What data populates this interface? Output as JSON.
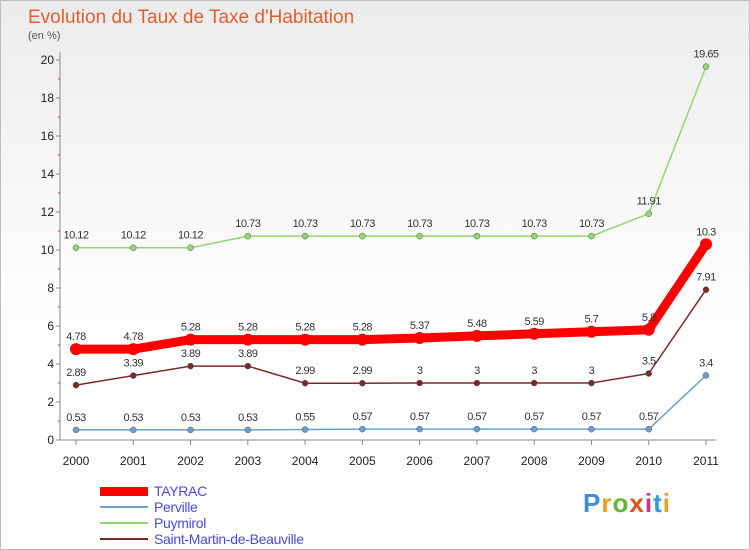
{
  "title": "Evolution du Taux de Taxe d'Habitation",
  "subtitle": "(en %)",
  "logo": {
    "text": "Proxiti",
    "colors": [
      "#3b8fd8",
      "#e8a020",
      "#5fb830",
      "#e05020",
      "#d03090",
      "#2a9fd8",
      "#e8a020"
    ]
  },
  "chart_data": {
    "type": "line",
    "x": [
      "2000",
      "2001",
      "2002",
      "2003",
      "2004",
      "2005",
      "2006",
      "2007",
      "2008",
      "2009",
      "2010",
      "2011"
    ],
    "ylim": [
      0,
      20
    ],
    "yticks": [
      0,
      2,
      4,
      6,
      8,
      10,
      12,
      14,
      16,
      18,
      20
    ],
    "grid": false,
    "legend_position": "bottom-left",
    "series": [
      {
        "name": "TAYRAC",
        "color": "#ff0000",
        "values": [
          4.78,
          4.78,
          5.28,
          5.28,
          5.28,
          5.28,
          5.37,
          5.48,
          5.59,
          5.7,
          5.8,
          10.3
        ],
        "labels": [
          "4.78",
          "4.78",
          "5.28",
          "5.28",
          "5.28",
          "5.28",
          "5.37",
          "5.48",
          "5.59",
          "5.7",
          "5.8",
          "10.3"
        ]
      },
      {
        "name": "Perville",
        "color": "#6a9fd0",
        "values": [
          0.53,
          0.53,
          0.53,
          0.53,
          0.55,
          0.57,
          0.57,
          0.57,
          0.57,
          0.57,
          0.57,
          3.4
        ],
        "labels": [
          "0.53",
          "0.53",
          "0.53",
          "0.53",
          "0.55",
          "0.57",
          "0.57",
          "0.57",
          "0.57",
          "0.57",
          "0.57",
          "3.4"
        ]
      },
      {
        "name": "Puymirol",
        "color": "#90d870",
        "values": [
          10.12,
          10.12,
          10.12,
          10.73,
          10.73,
          10.73,
          10.73,
          10.73,
          10.73,
          10.73,
          11.91,
          19.65
        ],
        "labels": [
          "10.12",
          "10.12",
          "10.12",
          "10.73",
          "10.73",
          "10.73",
          "10.73",
          "10.73",
          "10.73",
          "10.73",
          "11.91",
          "19.65"
        ]
      },
      {
        "name": "Saint-Martin-de-Beauville",
        "color": "#7a2a2a",
        "values": [
          2.89,
          3.39,
          3.89,
          3.89,
          2.99,
          2.99,
          3,
          3,
          3,
          3,
          3.5,
          7.91
        ],
        "labels": [
          "2.89",
          "3.39",
          "3.89",
          "3.89",
          "2.99",
          "2.99",
          "3",
          "3",
          "3",
          "3",
          "3.5",
          "7.91"
        ]
      }
    ]
  }
}
